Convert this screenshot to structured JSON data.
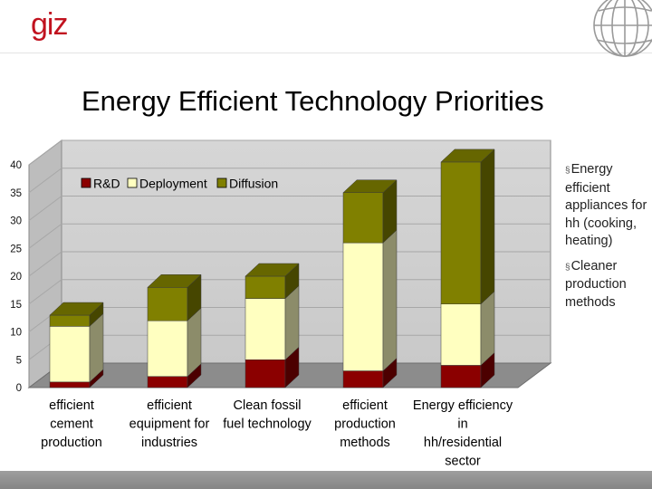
{
  "brand": {
    "logo_text": "giz",
    "accent": "#c1121f"
  },
  "slide_title": "Energy Efficient Technology Priorities",
  "bullets": [
    "Energy efficient appliances for hh (cooking, heating)",
    "Cleaner production methods"
  ],
  "colors": {
    "rnd": "#8b0000",
    "deployment": "#ffffc0",
    "diffusion": "#808000"
  },
  "chart_data": {
    "type": "bar",
    "stacked": true,
    "three_d": true,
    "title": "",
    "xlabel": "",
    "ylabel": "",
    "ylim": [
      0,
      40
    ],
    "yticks": [
      0,
      5,
      10,
      15,
      20,
      25,
      30,
      35,
      40
    ],
    "legend_position": "top-left",
    "categories": [
      [
        "efficient",
        "cement",
        "production"
      ],
      [
        "efficient",
        "equipment for",
        "industries"
      ],
      [
        "Clean fossil",
        "fuel technology"
      ],
      [
        "efficient",
        "production",
        "methods"
      ],
      [
        "Energy efficiency",
        "in",
        "hh/residential",
        "sector"
      ]
    ],
    "series": [
      {
        "name": "R&D",
        "values": [
          1,
          2,
          5,
          3,
          4
        ]
      },
      {
        "name": "Deployment",
        "values": [
          10,
          10,
          11,
          23,
          11
        ]
      },
      {
        "name": "Diffusion",
        "values": [
          2,
          6,
          4,
          9,
          25.5
        ]
      }
    ]
  }
}
